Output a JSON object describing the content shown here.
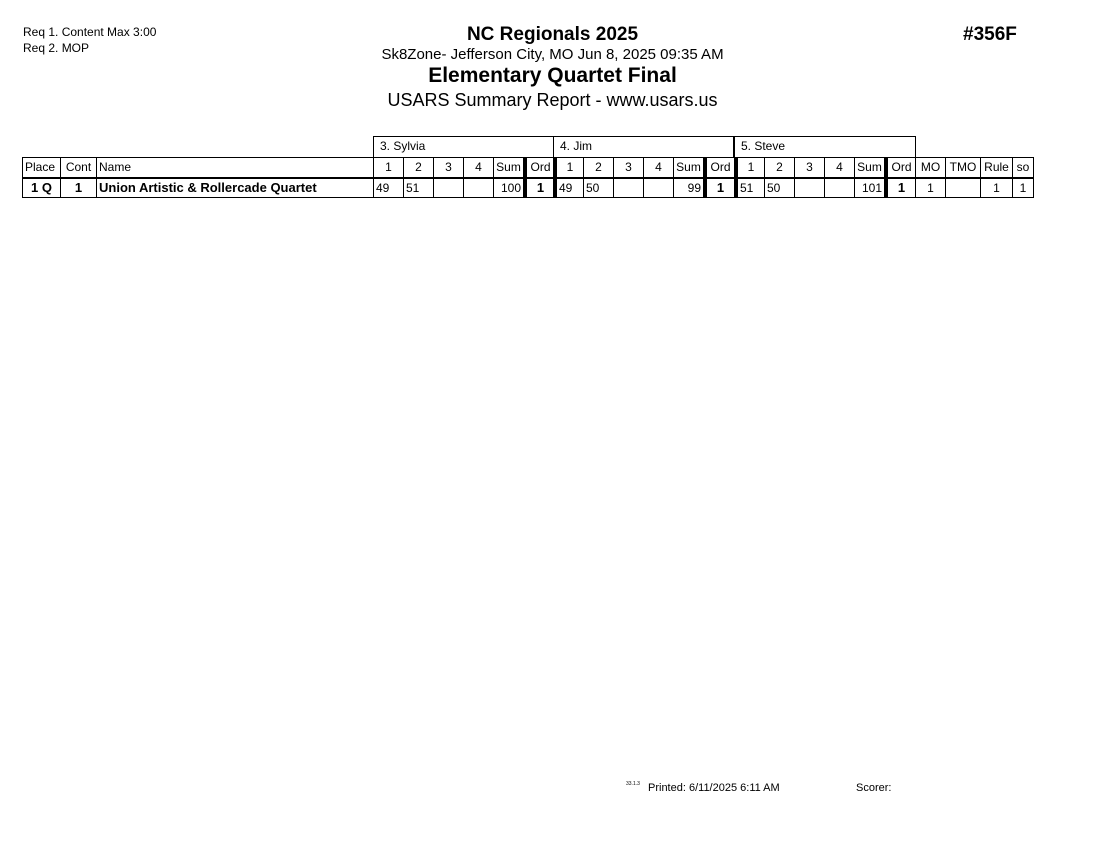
{
  "requirements": [
    "Req  1.  Content Max 3:00",
    "Req  2.  MOP"
  ],
  "header": {
    "event": "NC Regionals 2025",
    "location": "Sk8Zone- Jefferson City, MO  Jun 8, 2025  09:35 AM",
    "title": "Elementary Quartet Final",
    "report": "USARS Summary Report - www.usars.us",
    "code": "#356F"
  },
  "table": {
    "columns": {
      "place": "Place",
      "cont": "Cont",
      "name": "Name",
      "marks": [
        "1",
        "2",
        "3",
        "4"
      ],
      "sum": "Sum",
      "ord": "Ord",
      "mo": "MO",
      "tmo": "TMO",
      "rule": "Rule",
      "so": "so"
    },
    "judges": [
      "3.  Sylvia",
      "4.  Jim",
      "5.  Steve"
    ],
    "rows": [
      {
        "place": "1 Q",
        "cont": "1",
        "name": "Union Artistic & Rollercade Quartet",
        "judges": [
          {
            "marks": [
              "49",
              "51",
              "",
              ""
            ],
            "sum": "100",
            "ord": "1"
          },
          {
            "marks": [
              "49",
              "50",
              "",
              ""
            ],
            "sum": "99",
            "ord": "1"
          },
          {
            "marks": [
              "51",
              "50",
              "",
              ""
            ],
            "sum": "101",
            "ord": "1"
          }
        ],
        "mo": "1",
        "tmo": "",
        "rule": "1",
        "so": "1"
      }
    ]
  },
  "footer": {
    "version": "33.1.3",
    "printed": "Printed:  6/11/2025  6:11 AM",
    "scorer": "Scorer:"
  }
}
